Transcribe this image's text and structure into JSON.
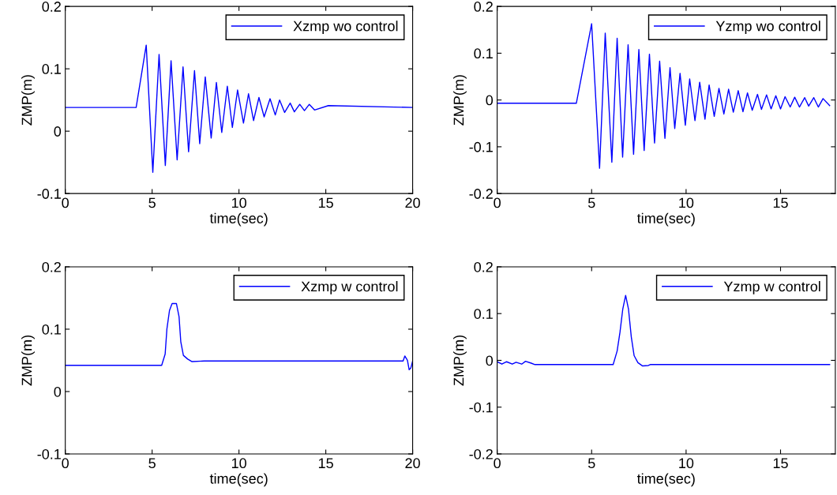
{
  "chart_data": [
    {
      "type": "line",
      "xlabel": "time(sec)",
      "ylabel": "ZMP(m)",
      "xlim": [
        0,
        20
      ],
      "ylim": [
        -0.1,
        0.2
      ],
      "xticks": [
        0,
        5,
        10,
        15,
        20
      ],
      "yticks": [
        -0.1,
        0,
        0.1,
        0.2
      ],
      "legend": "top right",
      "series": [
        {
          "name": "Xzmp wo control",
          "color": "#0000ff",
          "x": [
            0,
            4.08,
            4.66,
            5.04,
            5.4,
            5.76,
            6.09,
            6.44,
            6.78,
            7.1,
            7.44,
            7.74,
            8.06,
            8.4,
            8.7,
            9.01,
            9.33,
            9.62,
            9.92,
            10.26,
            10.55,
            10.84,
            11.15,
            11.45,
            11.79,
            12.09,
            12.34,
            12.63,
            12.95,
            13.19,
            13.5,
            13.77,
            14.05,
            14.35,
            15.15,
            20
          ],
          "values": [
            0.038,
            0.038,
            0.138,
            -0.066,
            0.123,
            -0.055,
            0.113,
            -0.046,
            0.103,
            -0.033,
            0.097,
            -0.02,
            0.087,
            -0.011,
            0.078,
            -0.002,
            0.072,
            0.006,
            0.066,
            0.013,
            0.06,
            0.017,
            0.054,
            0.023,
            0.052,
            0.026,
            0.05,
            0.03,
            0.045,
            0.031,
            0.043,
            0.033,
            0.043,
            0.034,
            0.041,
            0.038
          ]
        }
      ]
    },
    {
      "type": "line",
      "xlabel": "time(sec)",
      "ylabel": "ZMP(m)",
      "xlim": [
        0,
        17.9
      ],
      "ylim": [
        -0.2,
        0.2
      ],
      "xticks": [
        0,
        5,
        10,
        15
      ],
      "yticks": [
        -0.2,
        -0.1,
        0,
        0.1,
        0.2
      ],
      "legend": "top right",
      "series": [
        {
          "name": "Yzmp wo control",
          "color": "#0000ff",
          "x": [
            0,
            4.19,
            5.0,
            5.42,
            5.72,
            6.07,
            6.35,
            6.64,
            6.93,
            7.22,
            7.5,
            7.78,
            8.06,
            8.33,
            8.6,
            8.88,
            9.15,
            9.4,
            9.68,
            9.96,
            10.19,
            10.47,
            10.72,
            11.0,
            11.22,
            11.49,
            11.74,
            12.0,
            12.25,
            12.5,
            12.76,
            13.01,
            13.25,
            13.5,
            13.78,
            13.99,
            14.26,
            14.5,
            14.75,
            15.0,
            15.24,
            15.51,
            15.75,
            16.0,
            16.28,
            16.49,
            16.76,
            17.0,
            17.25,
            17.6
          ],
          "values": [
            -0.007,
            -0.007,
            0.163,
            -0.146,
            0.143,
            -0.133,
            0.132,
            -0.122,
            0.118,
            -0.116,
            0.108,
            -0.108,
            0.098,
            -0.092,
            0.083,
            -0.082,
            0.069,
            -0.061,
            0.057,
            -0.054,
            0.045,
            -0.044,
            0.038,
            -0.041,
            0.032,
            -0.035,
            0.025,
            -0.03,
            0.023,
            -0.026,
            0.02,
            -0.025,
            0.015,
            -0.022,
            0.012,
            -0.02,
            0.011,
            -0.019,
            0.009,
            -0.019,
            0.007,
            -0.015,
            0.006,
            -0.015,
            0.005,
            -0.013,
            0.005,
            -0.015,
            0.003,
            -0.012
          ]
        }
      ]
    },
    {
      "type": "line",
      "xlabel": "time(sec)",
      "ylabel": "ZMP(m)",
      "xlim": [
        0,
        20
      ],
      "ylim": [
        -0.1,
        0.2
      ],
      "xticks": [
        0,
        5,
        10,
        15,
        20
      ],
      "yticks": [
        -0.1,
        0,
        0.1,
        0.2
      ],
      "legend": "top right",
      "series": [
        {
          "name": "Xzmp w control",
          "color": "#0000ff",
          "x": [
            0,
            5.55,
            5.75,
            5.85,
            6.0,
            6.15,
            6.4,
            6.55,
            6.65,
            6.8,
            7.05,
            7.3,
            8.0,
            19.45,
            19.55,
            19.7,
            19.8,
            19.9,
            20
          ],
          "values": [
            0.042,
            0.042,
            0.06,
            0.1,
            0.13,
            0.141,
            0.141,
            0.12,
            0.08,
            0.058,
            0.052,
            0.048,
            0.049,
            0.049,
            0.057,
            0.05,
            0.035,
            0.038,
            0.049
          ]
        }
      ]
    },
    {
      "type": "line",
      "xlabel": "time(sec)",
      "ylabel": "ZMP(m)",
      "xlim": [
        0,
        17.9
      ],
      "ylim": [
        -0.2,
        0.2
      ],
      "xticks": [
        0,
        5,
        10,
        15
      ],
      "yticks": [
        -0.2,
        -0.1,
        0,
        0.1,
        0.2
      ],
      "legend": "top right",
      "series": [
        {
          "name": "Yzmp w control",
          "color": "#0000ff",
          "x": [
            0,
            0.25,
            0.5,
            0.8,
            1.0,
            1.3,
            1.5,
            1.8,
            2.0,
            6.14,
            6.35,
            6.5,
            6.65,
            6.8,
            6.95,
            7.1,
            7.25,
            7.45,
            7.7,
            8.0,
            8.1,
            17.6
          ],
          "values": [
            -0.003,
            -0.008,
            -0.003,
            -0.008,
            -0.004,
            -0.008,
            -0.002,
            -0.006,
            -0.009,
            -0.009,
            0.02,
            0.06,
            0.11,
            0.139,
            0.11,
            0.05,
            0.01,
            -0.005,
            -0.012,
            -0.011,
            -0.009,
            -0.009
          ]
        }
      ]
    }
  ]
}
